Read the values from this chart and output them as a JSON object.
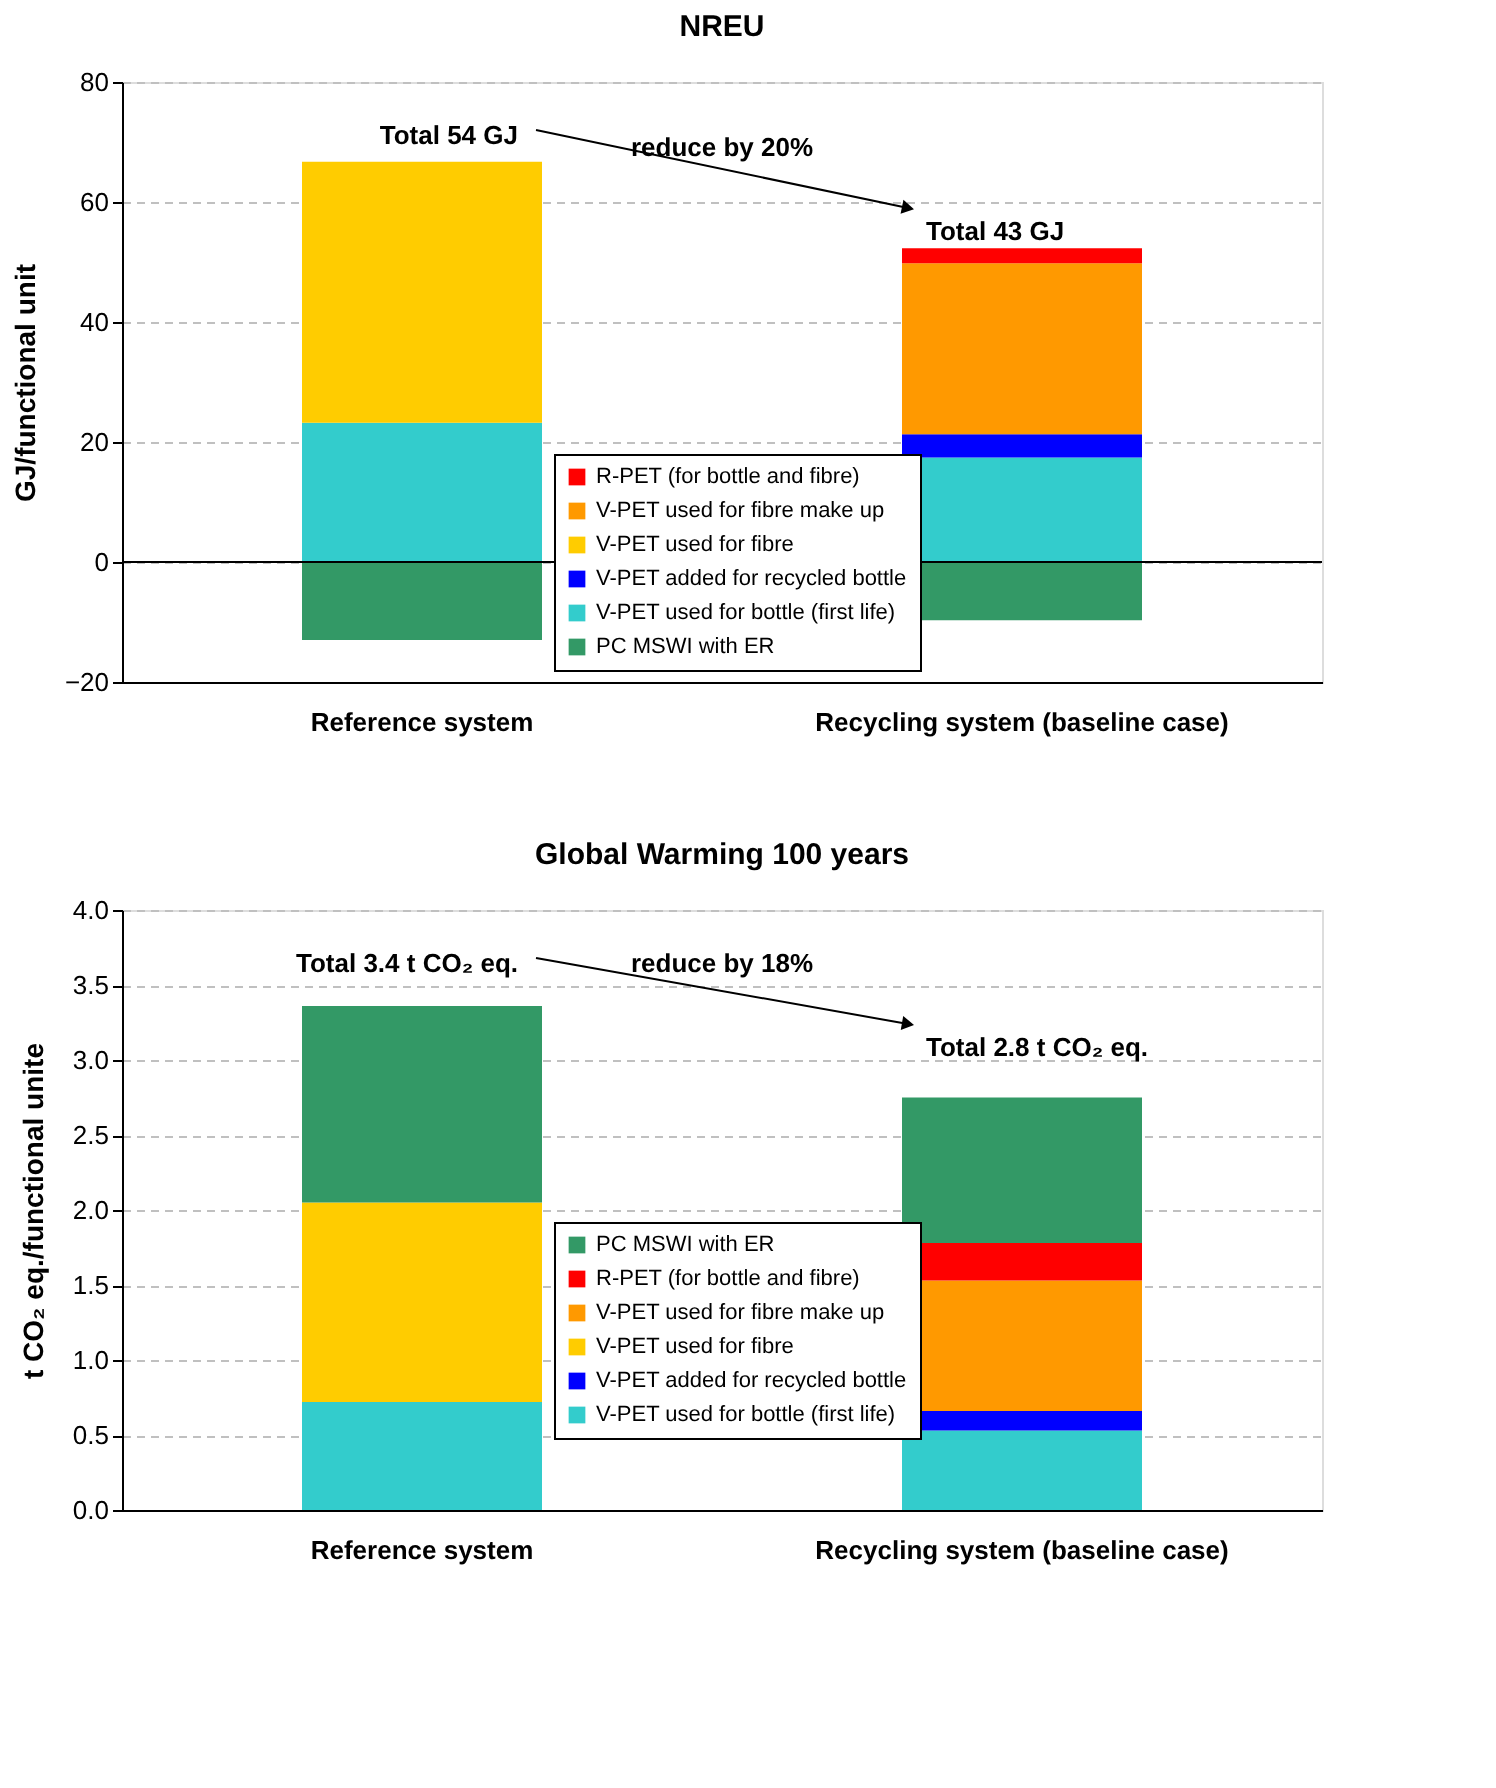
{
  "chart_data": [
    {
      "type": "bar",
      "title": "NREU",
      "ylabel": "GJ/functional unit",
      "stacked": true,
      "categories": [
        "Reference system",
        "Recycling system (baseline case)"
      ],
      "series": [
        {
          "name": "PC MSWI with ER",
          "color": "#339966",
          "values": [
            -13.0,
            -9.7
          ]
        },
        {
          "name": "V-PET used for bottle (first life)",
          "color": "#33cccc",
          "values": [
            23.2,
            17.4
          ]
        },
        {
          "name": "V-PET added for recycled bottle",
          "color": "#0000ff",
          "values": [
            null,
            3.9
          ]
        },
        {
          "name": "V-PET used for fibre",
          "color": "#ffcc00",
          "values": [
            43.5,
            null
          ]
        },
        {
          "name": "V-PET used for fibre make up",
          "color": "#ff9900",
          "values": [
            null,
            28.5
          ]
        },
        {
          "name": "R-PET (for bottle and fibre)",
          "color": "#ff0000",
          "values": [
            null,
            2.5
          ]
        }
      ],
      "ylim": [
        -20,
        80
      ],
      "yticks": [
        -20,
        0,
        20,
        40,
        60,
        80
      ],
      "grid": "y",
      "legend": "bottom",
      "ref_lines": [
        {
          "axis": "y",
          "value": 0,
          "color": "#000000"
        }
      ],
      "annotations": [
        "Total 54 GJ",
        "reduce by 20%",
        "Total 43 GJ"
      ]
    },
    {
      "type": "bar",
      "title": "Global Warming 100 years",
      "ylabel": "t CO₂ eq./functional unite",
      "stacked": true,
      "categories": [
        "Reference system",
        "Recycling system (baseline case)"
      ],
      "series": [
        {
          "name": "V-PET used for bottle (first life)",
          "color": "#33cccc",
          "values": [
            0.72,
            0.53
          ]
        },
        {
          "name": "V-PET added for recycled bottle",
          "color": "#0000ff",
          "values": [
            null,
            0.13
          ]
        },
        {
          "name": "V-PET used for fibre",
          "color": "#ffcc00",
          "values": [
            1.33,
            null
          ]
        },
        {
          "name": "V-PET used for fibre make up",
          "color": "#ff9900",
          "values": [
            null,
            0.87
          ]
        },
        {
          "name": "R-PET (for bottle and fibre)",
          "color": "#ff0000",
          "values": [
            null,
            0.25
          ]
        },
        {
          "name": "PC MSWI with ER",
          "color": "#339966",
          "values": [
            1.31,
            0.97
          ]
        }
      ],
      "ylim": [
        0,
        4
      ],
      "yticks": [
        {
          "value": 0,
          "label": "0.0"
        },
        {
          "value": 0.5,
          "label": "0.5"
        },
        {
          "value": 1,
          "label": "1.0"
        },
        {
          "value": 1.5,
          "label": "1.5"
        },
        {
          "value": 2,
          "label": "2.0"
        },
        {
          "value": 2.5,
          "label": "2.5"
        },
        {
          "value": 3,
          "label": "3.0"
        },
        {
          "value": 3.5,
          "label": "3.5"
        },
        {
          "value": 4,
          "label": "4.0"
        }
      ],
      "grid": "y",
      "legend": "bottom",
      "annotations": [
        "Total 3.4 t CO₂ eq.",
        "reduce by 18%",
        "Total 2.8 t CO₂ eq."
      ]
    }
  ]
}
